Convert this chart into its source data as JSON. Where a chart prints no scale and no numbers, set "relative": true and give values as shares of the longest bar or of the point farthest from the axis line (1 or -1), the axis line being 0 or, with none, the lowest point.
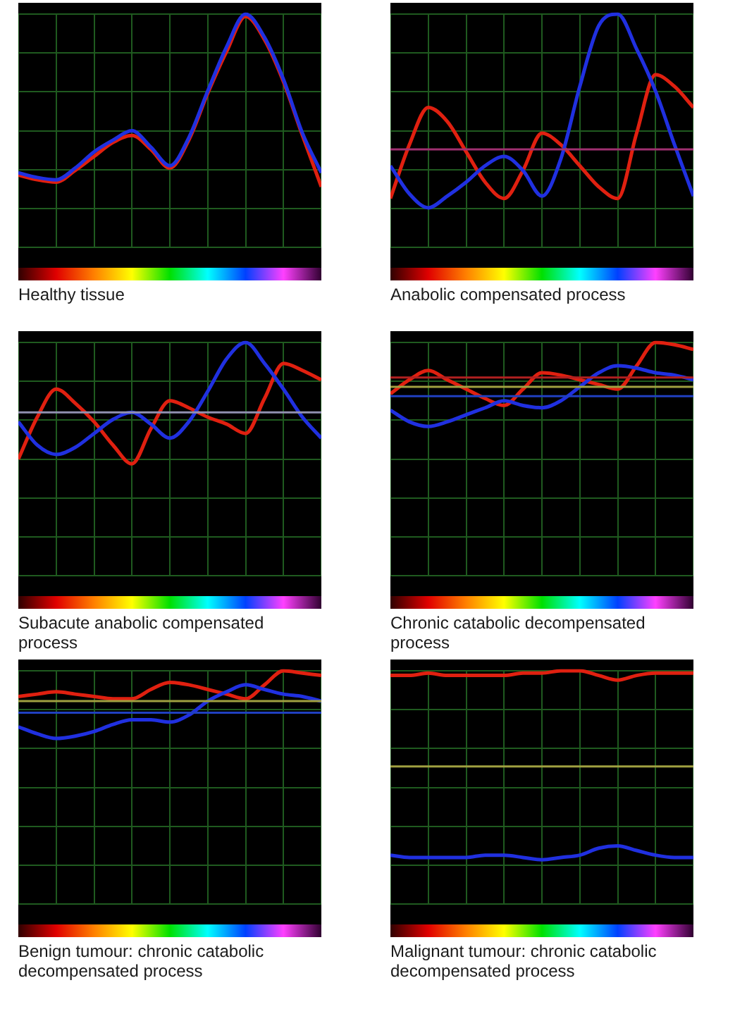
{
  "chart_data": [
    {
      "type": "line",
      "title": "Healthy tissue",
      "relative": true,
      "grid": true,
      "marker": "none",
      "categories": [
        null,
        null,
        null,
        null,
        null,
        null,
        null,
        null,
        null,
        null,
        null,
        null,
        null,
        null,
        null,
        null,
        null
      ],
      "series": [
        {
          "color": "#2030e0",
          "values": [
            0.32,
            0.3,
            0.29,
            0.34,
            0.41,
            0.46,
            0.5,
            0.43,
            0.35,
            0.47,
            0.67,
            0.86,
            1,
            0.9,
            0.72,
            0.49,
            0.32
          ]
        },
        {
          "color": "#e02010",
          "values": [
            0.31,
            0.29,
            0.28,
            0.33,
            0.39,
            0.45,
            0.48,
            0.42,
            0.34,
            0.46,
            0.66,
            0.84,
            0.99,
            0.89,
            0.71,
            0.48,
            0.26
          ]
        }
      ]
    },
    {
      "type": "line",
      "title": "Anabolic compensated process",
      "relative": true,
      "grid": true,
      "marker": "none",
      "categories": [
        null,
        null,
        null,
        null,
        null,
        null,
        null,
        null,
        null,
        null,
        null,
        null,
        null,
        null,
        null,
        null,
        null
      ],
      "series": [
        {
          "color": "#2030e0",
          "values": [
            0.35,
            0.23,
            0.17,
            0.22,
            0.28,
            0.35,
            0.39,
            0.33,
            0.22,
            0.38,
            0.69,
            0.95,
            1,
            0.85,
            0.67,
            0.44,
            0.22
          ]
        },
        {
          "color": "#e02010",
          "values": [
            0.21,
            0.44,
            0.6,
            0.54,
            0.41,
            0.28,
            0.21,
            0.33,
            0.49,
            0.44,
            0.35,
            0.26,
            0.21,
            0.49,
            0.74,
            0.69,
            0.6
          ]
        }
      ],
      "ref_lines": [
        {
          "axis": "y",
          "value": 0.42,
          "color": "#a03070"
        }
      ]
    },
    {
      "type": "line",
      "title": "Subacute anabolic compensated process",
      "relative": true,
      "grid": true,
      "marker": "none",
      "categories": [
        null,
        null,
        null,
        null,
        null,
        null,
        null,
        null,
        null,
        null,
        null,
        null,
        null,
        null,
        null,
        null,
        null
      ],
      "series": [
        {
          "color": "#2030e0",
          "values": [
            0.66,
            0.56,
            0.52,
            0.55,
            0.61,
            0.67,
            0.7,
            0.65,
            0.59,
            0.66,
            0.79,
            0.93,
            1,
            0.91,
            0.8,
            0.68,
            0.59
          ]
        },
        {
          "color": "#e02010",
          "values": [
            0.5,
            0.68,
            0.8,
            0.74,
            0.66,
            0.56,
            0.48,
            0.63,
            0.75,
            0.72,
            0.68,
            0.65,
            0.61,
            0.76,
            0.91,
            0.88,
            0.84
          ]
        }
      ],
      "ref_lines": [
        {
          "axis": "y",
          "value": 0.7,
          "color": "#9090b0"
        }
      ]
    },
    {
      "type": "line",
      "title": "Chronic catabolic decompensated process",
      "relative": true,
      "grid": true,
      "marker": "none",
      "categories": [
        null,
        null,
        null,
        null,
        null,
        null,
        null,
        null,
        null,
        null,
        null,
        null,
        null,
        null,
        null,
        null,
        null
      ],
      "series": [
        {
          "color": "#2030e0",
          "values": [
            0.71,
            0.66,
            0.64,
            0.66,
            0.69,
            0.72,
            0.75,
            0.73,
            0.72,
            0.75,
            0.81,
            0.87,
            0.9,
            0.89,
            0.87,
            0.86,
            0.84
          ]
        },
        {
          "color": "#e02010",
          "values": [
            0.78,
            0.84,
            0.88,
            0.84,
            0.8,
            0.76,
            0.73,
            0.8,
            0.87,
            0.86,
            0.84,
            0.82,
            0.8,
            0.9,
            1,
            0.99,
            0.97
          ]
        }
      ],
      "ref_lines": [
        {
          "axis": "y",
          "value": 0.85,
          "color": "#b02020"
        },
        {
          "axis": "y",
          "value": 0.81,
          "color": "#a0a040"
        },
        {
          "axis": "y",
          "value": 0.77,
          "color": "#2040c0"
        }
      ]
    },
    {
      "type": "line",
      "title": "Benign tumour: chronic catabolic decompensated process",
      "relative": true,
      "grid": true,
      "marker": "none",
      "categories": [
        null,
        null,
        null,
        null,
        null,
        null,
        null,
        null,
        null,
        null,
        null,
        null,
        null,
        null,
        null,
        null,
        null
      ],
      "series": [
        {
          "color": "#2030e0",
          "values": [
            0.76,
            0.73,
            0.71,
            0.72,
            0.74,
            0.77,
            0.79,
            0.79,
            0.78,
            0.81,
            0.87,
            0.91,
            0.94,
            0.92,
            0.9,
            0.89,
            0.87
          ]
        },
        {
          "color": "#e02010",
          "values": [
            0.89,
            0.9,
            0.91,
            0.9,
            0.89,
            0.88,
            0.88,
            0.92,
            0.95,
            0.94,
            0.92,
            0.9,
            0.88,
            0.94,
            1,
            0.99,
            0.98
          ]
        }
      ],
      "ref_lines": [
        {
          "axis": "y",
          "value": 0.87,
          "color": "#a0a040"
        },
        {
          "axis": "y",
          "value": 0.82,
          "color": "#2040c0"
        }
      ]
    },
    {
      "type": "line",
      "title": "Malignant tumour: chronic catabolic decompensated process",
      "relative": true,
      "grid": true,
      "marker": "none",
      "categories": [
        null,
        null,
        null,
        null,
        null,
        null,
        null,
        null,
        null,
        null,
        null,
        null,
        null,
        null,
        null,
        null,
        null
      ],
      "series": [
        {
          "color": "#2030e0",
          "values": [
            0.21,
            0.2,
            0.2,
            0.2,
            0.2,
            0.21,
            0.21,
            0.2,
            0.19,
            0.2,
            0.21,
            0.24,
            0.25,
            0.23,
            0.21,
            0.2,
            0.2
          ]
        },
        {
          "color": "#e02010",
          "values": [
            0.98,
            0.98,
            0.99,
            0.98,
            0.98,
            0.98,
            0.98,
            0.99,
            0.99,
            1,
            1,
            0.98,
            0.96,
            0.98,
            0.99,
            0.99,
            0.99
          ]
        }
      ],
      "ref_lines": [
        {
          "axis": "y",
          "value": 0.59,
          "color": "#a0a040"
        }
      ]
    }
  ]
}
